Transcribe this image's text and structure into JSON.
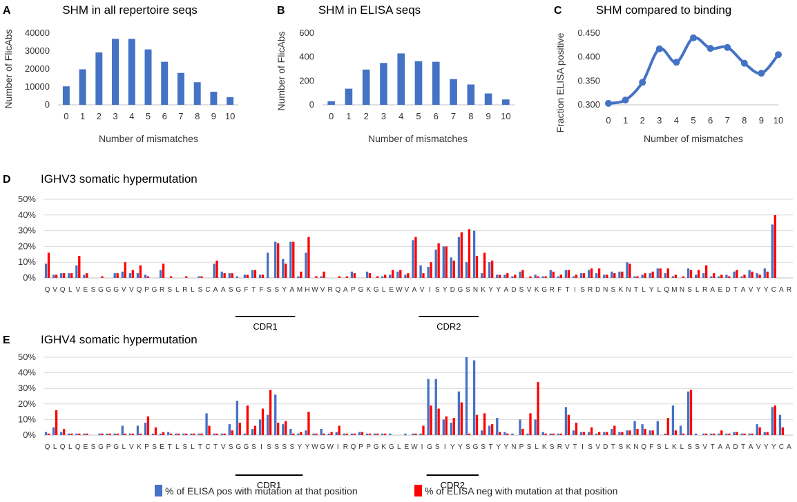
{
  "colors": {
    "blue": "#4472C4",
    "red": "#FF0000",
    "axis": "#bfbfbf",
    "grid": "#d9d9d9"
  },
  "legend": {
    "pos_label": "% of ELISA pos with mutation at that position",
    "neg_label": "% of ELISA neg with mutation at that position"
  },
  "chart_data": [
    {
      "id": "A",
      "letter": "A",
      "type": "bar",
      "title": "SHM in all repertoire seqs",
      "xlabel": "Number of mismatches",
      "ylabel": "Number of FlicAbs",
      "categories": [
        "0",
        "1",
        "2",
        "3",
        "4",
        "5",
        "6",
        "7",
        "8",
        "9",
        "10"
      ],
      "values": [
        10300,
        19800,
        29200,
        36800,
        36800,
        30900,
        24000,
        17800,
        12600,
        7300,
        4300
      ],
      "ylim": [
        0,
        40000
      ],
      "yticks": [
        0,
        10000,
        20000,
        30000,
        40000
      ]
    },
    {
      "id": "B",
      "letter": "B",
      "type": "bar",
      "title": "SHM in ELISA seqs",
      "xlabel": "Number of mismatches",
      "ylabel": "Number of FlicAbs",
      "categories": [
        "0",
        "1",
        "2",
        "3",
        "4",
        "5",
        "6",
        "7",
        "8",
        "9",
        "10"
      ],
      "values": [
        30,
        135,
        295,
        350,
        430,
        365,
        360,
        215,
        170,
        95,
        45
      ],
      "ylim": [
        0,
        600
      ],
      "yticks": [
        0,
        200,
        400,
        600
      ]
    },
    {
      "id": "C",
      "letter": "C",
      "type": "line",
      "title": "SHM compared to binding",
      "xlabel": "Number of mismatches",
      "ylabel": "Fraction ELISA positive",
      "categories": [
        "0",
        "1",
        "2",
        "3",
        "4",
        "5",
        "6",
        "7",
        "8",
        "9",
        "10"
      ],
      "values": [
        0.303,
        0.31,
        0.347,
        0.417,
        0.389,
        0.44,
        0.418,
        0.42,
        0.387,
        0.366,
        0.405
      ],
      "ylim": [
        0.3,
        0.45
      ],
      "yticks": [
        0.3,
        0.35,
        0.4,
        0.45
      ],
      "ytick_labels": [
        "0.300",
        "0.350",
        "0.400",
        "0.450"
      ]
    },
    {
      "id": "D",
      "letter": "D",
      "type": "bar",
      "title": "IGHV3 somatic hypermutation",
      "ylim": [
        0,
        50
      ],
      "yticks": [
        0,
        10,
        20,
        30,
        40,
        50
      ],
      "ytick_labels": [
        "0%",
        "10%",
        "20%",
        "30%",
        "40%",
        "50%"
      ],
      "residues": "QVQLVESGGGVVQPGRSLRLSCAASGFTFSSYAMHWVRQAPGKGLEWVAVISYDGSNKYYADSVKGRFTISRDNSKNTLYLQMNSLRAEDTAVYYCAR",
      "cdrs": [
        {
          "label": "CDR1",
          "start": 26,
          "end": 33
        },
        {
          "label": "CDR2",
          "start": 50,
          "end": 57
        }
      ],
      "series": [
        {
          "name": "% of ELISA pos with mutation at that position",
          "values": [
            9,
            2,
            3,
            3,
            8,
            2,
            0,
            0,
            0,
            3,
            4,
            3,
            3,
            2,
            0,
            5,
            0,
            0,
            0,
            0,
            1,
            0,
            9,
            4,
            3,
            1,
            2,
            5,
            2,
            16,
            23,
            12,
            23,
            1,
            16,
            0,
            1,
            0,
            0,
            0,
            4,
            0,
            4,
            0,
            1,
            2,
            4,
            2,
            24,
            8,
            7,
            18,
            20,
            13,
            26,
            10,
            30,
            3,
            10,
            2,
            2,
            1,
            4,
            0,
            2,
            1,
            5,
            1,
            5,
            1,
            3,
            5,
            3,
            2,
            4,
            4,
            10,
            1,
            2,
            3,
            6,
            3,
            1,
            0,
            6,
            2,
            3,
            1,
            1,
            2,
            4,
            1,
            5,
            3,
            6,
            34
          ]
        },
        {
          "name": "% of ELISA neg with mutation at that position",
          "values": [
            16,
            2,
            3,
            3,
            14,
            3,
            0,
            1,
            0,
            3,
            10,
            5,
            8,
            1,
            0,
            9,
            1,
            0,
            1,
            0,
            1,
            0,
            11,
            3,
            3,
            0,
            2,
            5,
            2,
            0,
            22,
            9,
            23,
            4,
            26,
            1,
            4,
            0,
            1,
            1,
            3,
            0,
            3,
            1,
            2,
            5,
            5,
            3,
            26,
            3,
            10,
            22,
            20,
            11,
            29,
            31,
            14,
            16,
            11,
            2,
            3,
            2,
            5,
            1,
            1,
            1,
            4,
            2,
            5,
            2,
            3,
            6,
            6,
            2,
            3,
            4,
            9,
            1,
            3,
            4,
            6,
            6,
            2,
            1,
            5,
            5,
            8,
            3,
            2,
            1,
            5,
            2,
            4,
            2,
            4,
            40
          ]
        }
      ]
    },
    {
      "id": "E",
      "letter": "E",
      "type": "bar",
      "title": "IGHV4 somatic hypermutation",
      "ylim": [
        0,
        50
      ],
      "yticks": [
        0,
        10,
        20,
        30,
        40,
        50
      ],
      "ytick_labels": [
        "0%",
        "10%",
        "20%",
        "30%",
        "40%",
        "50%"
      ],
      "residues": "QLQLQESGPGLVKPSETLSLTCTVSGGSISSSSYYWGWIRQPPGKGLEWIGSIYYSGSTYYNPSLKSRVTISVDTSKNQFSLKLSSVTAADTAVYYCA",
      "cdrs": [
        {
          "label": "CDR1",
          "start": 26,
          "end": 34
        },
        {
          "label": "CDR2",
          "start": 51,
          "end": 57
        }
      ],
      "series": [
        {
          "name": "% of ELISA pos with mutation at that position",
          "values": [
            2,
            5,
            2,
            1,
            1,
            1,
            0,
            1,
            1,
            1,
            6,
            1,
            6,
            8,
            1,
            1,
            2,
            1,
            1,
            1,
            1,
            14,
            1,
            1,
            7,
            22,
            1,
            4,
            10,
            13,
            26,
            7,
            4,
            1,
            3,
            1,
            4,
            1,
            2,
            1,
            1,
            2,
            1,
            1,
            1,
            1,
            0,
            1,
            1,
            1,
            36,
            36,
            10,
            8,
            28,
            50,
            48,
            3,
            6,
            11,
            2,
            1,
            10,
            1,
            10,
            2,
            1,
            1,
            18,
            3,
            2,
            2,
            1,
            2,
            4,
            2,
            3,
            9,
            7,
            3,
            9,
            1,
            19,
            6,
            28,
            1,
            1,
            1,
            1,
            1,
            2,
            1,
            1,
            7,
            2,
            18,
            13
          ]
        },
        {
          "name": "% of ELISA neg with mutation at that position",
          "values": [
            1,
            16,
            4,
            1,
            1,
            1,
            0,
            1,
            1,
            1,
            1,
            1,
            1,
            12,
            5,
            2,
            1,
            1,
            1,
            1,
            1,
            6,
            1,
            1,
            3,
            8,
            19,
            6,
            17,
            29,
            8,
            9,
            1,
            2,
            15,
            1,
            1,
            2,
            6,
            1,
            1,
            2,
            1,
            1,
            1,
            0,
            0,
            0,
            1,
            6,
            19,
            17,
            12,
            11,
            21,
            1,
            13,
            14,
            7,
            2,
            1,
            0,
            4,
            14,
            34,
            1,
            1,
            1,
            13,
            8,
            2,
            5,
            2,
            2,
            6,
            2,
            3,
            4,
            4,
            3,
            0,
            11,
            3,
            1,
            29,
            0,
            1,
            1,
            3,
            1,
            2,
            1,
            1,
            5,
            2,
            19,
            5
          ]
        }
      ]
    }
  ]
}
